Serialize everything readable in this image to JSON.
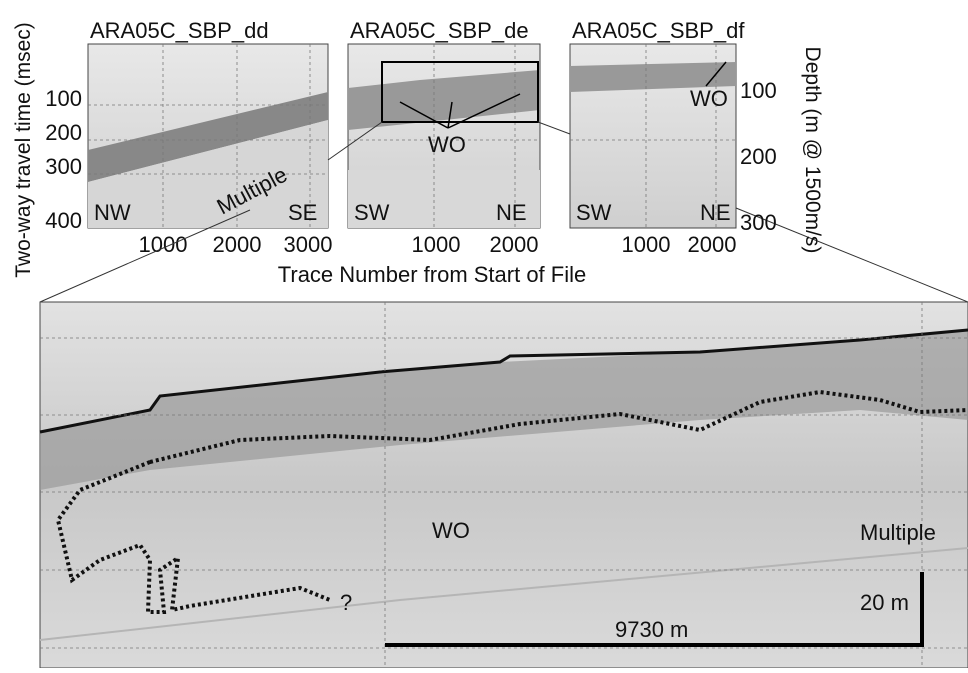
{
  "y_axis_left": {
    "label": "Two-way travel time (msec)",
    "ticks": [
      100,
      200,
      300,
      400
    ]
  },
  "y_axis_right": {
    "label": "Depth (m @ 1500m/s)",
    "ticks": [
      100,
      200,
      300
    ]
  },
  "x_axis": {
    "label": "Trace Number from Start of File"
  },
  "panels": [
    {
      "title": "ARA05C_SBP_dd",
      "left": "NW",
      "right": "SE",
      "xticks": [
        1000,
        2000,
        3000
      ],
      "note": "Multiple"
    },
    {
      "title": "ARA05C_SBP_de",
      "left": "SW",
      "right": "NE",
      "xticks": [
        1000,
        2000
      ],
      "note": "WO"
    },
    {
      "title": "ARA05C_SBP_df",
      "left": "SW",
      "right": "NE",
      "xticks": [
        1000,
        2000
      ],
      "note": "WO"
    }
  ],
  "detail": {
    "wo": "WO",
    "multiple": "Multiple",
    "question": "?",
    "vertical_scale": "20 m",
    "horizontal_scale": "9730 m"
  }
}
